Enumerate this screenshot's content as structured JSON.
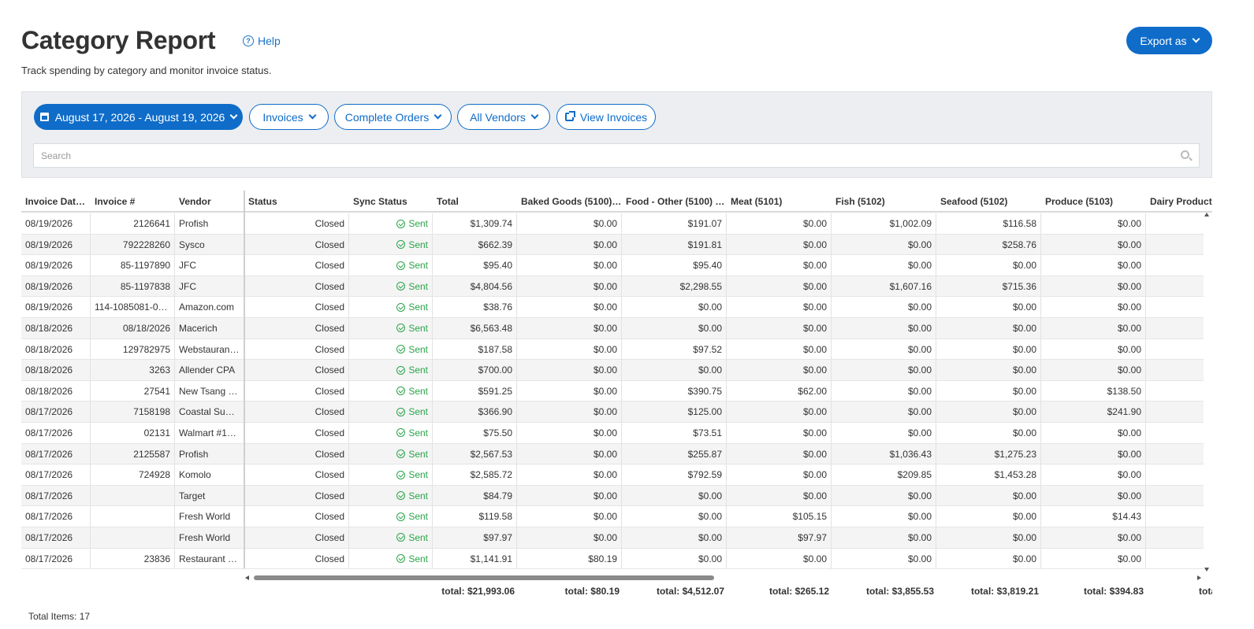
{
  "header": {
    "title": "Category Report",
    "help_label": "Help",
    "subtitle": "Track spending by category and monitor invoice status.",
    "export_label": "Export as"
  },
  "filters": {
    "date_range": "August 17, 2026 - August 19, 2026",
    "type": "Invoices",
    "order_status": "Complete Orders",
    "vendors": "All Vendors",
    "view_invoices": "View Invoices"
  },
  "search": {
    "placeholder": "Search"
  },
  "table": {
    "columns": [
      "Invoice Dat…",
      "Invoice #",
      "Vendor",
      "Status",
      "Sync Status",
      "Total",
      "Baked Goods (5100)…",
      "Food - Other (5100) …",
      "Meat (5101)",
      "Fish (5102)",
      "Seafood (5102)",
      "Produce (5103)",
      "Dairy Product"
    ],
    "rows": [
      [
        "08/19/2026",
        "2126641",
        "Profish",
        "Closed",
        "Sent",
        "$1,309.74",
        "$0.00",
        "$191.07",
        "$0.00",
        "$1,002.09",
        "$116.58",
        "$0.00"
      ],
      [
        "08/19/2026",
        "792228260",
        "Sysco",
        "Closed",
        "Sent",
        "$662.39",
        "$0.00",
        "$191.81",
        "$0.00",
        "$0.00",
        "$258.76",
        "$0.00"
      ],
      [
        "08/19/2026",
        "85-1197890",
        "JFC",
        "Closed",
        "Sent",
        "$95.40",
        "$0.00",
        "$95.40",
        "$0.00",
        "$0.00",
        "$0.00",
        "$0.00"
      ],
      [
        "08/19/2026",
        "85-1197838",
        "JFC",
        "Closed",
        "Sent",
        "$4,804.56",
        "$0.00",
        "$2,298.55",
        "$0.00",
        "$1,607.16",
        "$715.36",
        "$0.00"
      ],
      [
        "08/19/2026",
        "114-1085081-04…",
        "Amazon.com",
        "Closed",
        "Sent",
        "$38.76",
        "$0.00",
        "$0.00",
        "$0.00",
        "$0.00",
        "$0.00",
        "$0.00"
      ],
      [
        "08/18/2026",
        "08/18/2026",
        "Macerich",
        "Closed",
        "Sent",
        "$6,563.48",
        "$0.00",
        "$0.00",
        "$0.00",
        "$0.00",
        "$0.00",
        "$0.00"
      ],
      [
        "08/18/2026",
        "129782975",
        "Webstaurant…",
        "Closed",
        "Sent",
        "$187.58",
        "$0.00",
        "$97.52",
        "$0.00",
        "$0.00",
        "$0.00",
        "$0.00"
      ],
      [
        "08/18/2026",
        "3263",
        "Allender CPA",
        "Closed",
        "Sent",
        "$700.00",
        "$0.00",
        "$0.00",
        "$0.00",
        "$0.00",
        "$0.00",
        "$0.00"
      ],
      [
        "08/18/2026",
        "27541",
        "New Tsang …",
        "Closed",
        "Sent",
        "$591.25",
        "$0.00",
        "$390.75",
        "$62.00",
        "$0.00",
        "$0.00",
        "$138.50"
      ],
      [
        "08/17/2026",
        "7158198",
        "Coastal Sun…",
        "Closed",
        "Sent",
        "$366.90",
        "$0.00",
        "$125.00",
        "$0.00",
        "$0.00",
        "$0.00",
        "$241.90"
      ],
      [
        "08/17/2026",
        "02131",
        "Walmart #1469",
        "Closed",
        "Sent",
        "$75.50",
        "$0.00",
        "$73.51",
        "$0.00",
        "$0.00",
        "$0.00",
        "$0.00"
      ],
      [
        "08/17/2026",
        "2125587",
        "Profish",
        "Closed",
        "Sent",
        "$2,567.53",
        "$0.00",
        "$255.87",
        "$0.00",
        "$1,036.43",
        "$1,275.23",
        "$0.00"
      ],
      [
        "08/17/2026",
        "724928",
        "Komolo",
        "Closed",
        "Sent",
        "$2,585.72",
        "$0.00",
        "$792.59",
        "$0.00",
        "$209.85",
        "$1,453.28",
        "$0.00"
      ],
      [
        "08/17/2026",
        "",
        "Target",
        "Closed",
        "Sent",
        "$84.79",
        "$0.00",
        "$0.00",
        "$0.00",
        "$0.00",
        "$0.00",
        "$0.00"
      ],
      [
        "08/17/2026",
        "",
        "Fresh World",
        "Closed",
        "Sent",
        "$119.58",
        "$0.00",
        "$0.00",
        "$105.15",
        "$0.00",
        "$0.00",
        "$14.43"
      ],
      [
        "08/17/2026",
        "",
        "Fresh World",
        "Closed",
        "Sent",
        "$97.97",
        "$0.00",
        "$0.00",
        "$97.97",
        "$0.00",
        "$0.00",
        "$0.00"
      ],
      [
        "08/17/2026",
        "23836",
        "Restaurant …",
        "Closed",
        "Sent",
        "$1,141.91",
        "$80.19",
        "$0.00",
        "$0.00",
        "$0.00",
        "$0.00",
        "$0.00"
      ]
    ],
    "totals": [
      "total: $21,993.06",
      "total: $80.19",
      "total: $4,512.07",
      "total: $265.12",
      "total: $3,855.53",
      "total: $3,819.21",
      "total: $394.83",
      "tota"
    ]
  },
  "footer": {
    "total_items": "Total Items: 17"
  },
  "colors": {
    "primary": "#0f6cc9",
    "sent": "#2aa44a",
    "panel_bg": "#eceef1"
  },
  "icons": [
    "help-circle-icon",
    "chevron-down-icon",
    "calendar-icon",
    "external-link-icon",
    "search-icon",
    "check-circle-icon"
  ]
}
